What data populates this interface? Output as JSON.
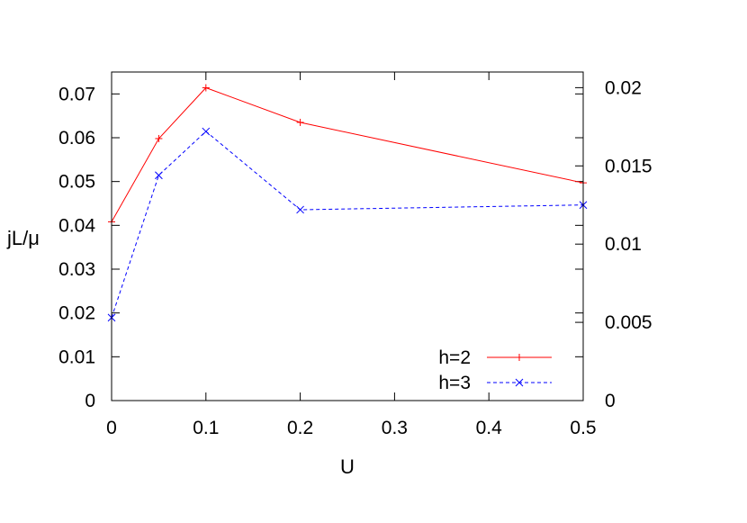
{
  "chart_data": {
    "type": "line",
    "xlabel": "U",
    "ylabel": "jL/μ",
    "xlim": [
      0,
      0.5
    ],
    "ylim": [
      0,
      0.075
    ],
    "y2lim": [
      0,
      0.021
    ],
    "x_ticks": [
      "0",
      "0.1",
      "0.2",
      "0.3",
      "0.4",
      "0.5"
    ],
    "y_ticks": [
      "0",
      "0.01",
      "0.02",
      "0.03",
      "0.04",
      "0.05",
      "0.06",
      "0.07"
    ],
    "y2_ticks": [
      "0",
      "0.005",
      "0.01",
      "0.015",
      "0.02"
    ],
    "legend_position": "bottom-right",
    "grid": false,
    "series": [
      {
        "name": "h=2",
        "axis": "left",
        "color": "#ff0000",
        "marker": "plus",
        "line": "solid",
        "x": [
          0,
          0.05,
          0.1,
          0.2,
          0.5
        ],
        "y": [
          0.0408,
          0.0598,
          0.0714,
          0.0635,
          0.0497
        ]
      },
      {
        "name": "h=3",
        "axis": "right",
        "color": "#0000ff",
        "marker": "cross",
        "line": "dashed",
        "x": [
          0,
          0.05,
          0.1,
          0.2,
          0.5
        ],
        "y": [
          0.0053,
          0.0144,
          0.0172,
          0.0122,
          0.0125
        ]
      }
    ]
  }
}
